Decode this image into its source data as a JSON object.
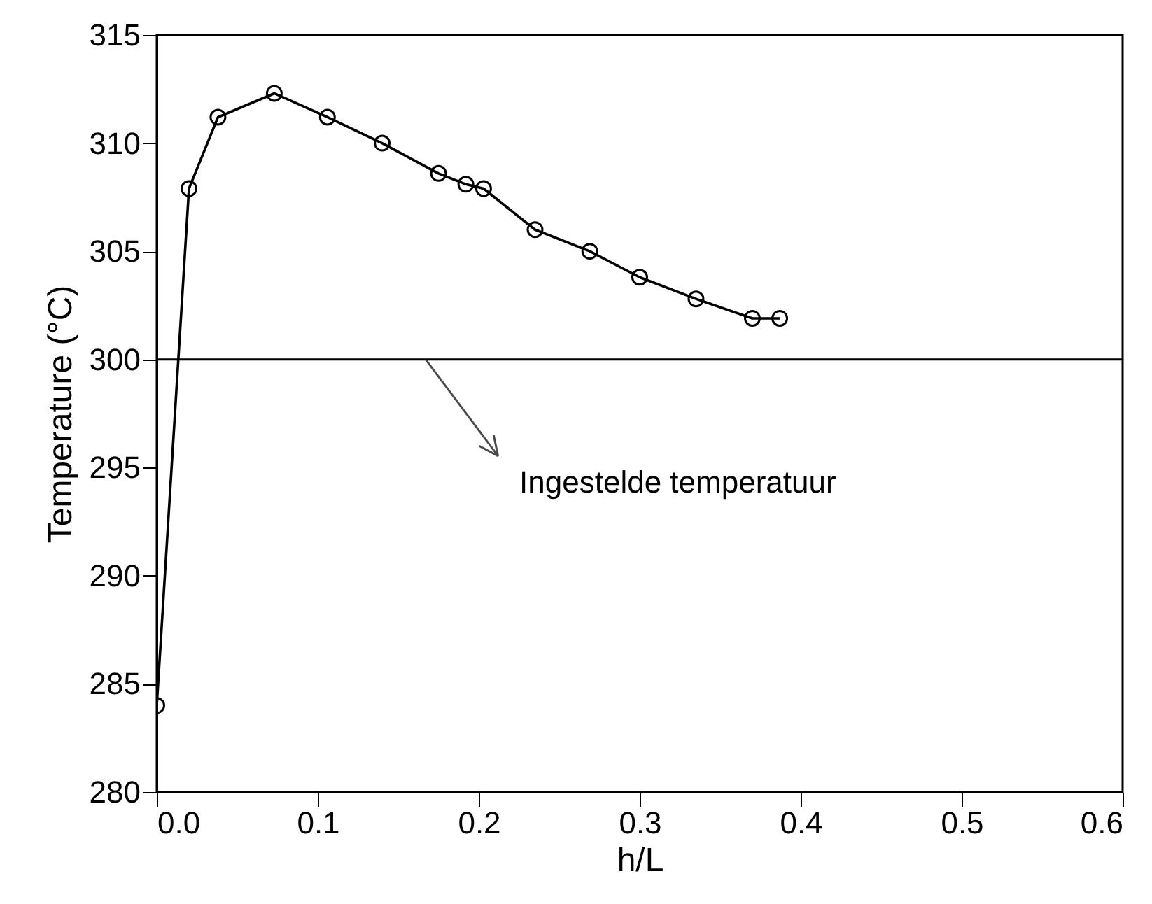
{
  "chart_data": {
    "type": "line",
    "xlabel": "h/L",
    "ylabel": "Temperature (°C)",
    "x": [
      0,
      0.02,
      0.038,
      0.073,
      0.106,
      0.14,
      0.175,
      0.192,
      0.203,
      0.235,
      0.269,
      0.3,
      0.335,
      0.37,
      0.387
    ],
    "series": [
      {
        "color": "#000000",
        "values": [
          284,
          307.9,
          311.2,
          312.3,
          311.2,
          310,
          308.6,
          308.1,
          307.9,
          306,
          305,
          303.8,
          302.8,
          301.9,
          301.9
        ]
      }
    ],
    "xlim": [
      0,
      0.6
    ],
    "xticks": [
      {
        "value": 0,
        "label": "0.0"
      },
      0.1,
      0.2,
      0.3,
      0.4,
      0.5,
      0.6
    ],
    "ylim": [
      280,
      315
    ],
    "yticks": [
      280,
      285,
      290,
      295,
      300,
      305,
      310,
      315
    ],
    "ref_lines": [
      {
        "axis": "y",
        "value": 300,
        "color": "#000000"
      }
    ],
    "annotations": [
      {
        "text": "Ingestelde temperatuur",
        "x": 0.167,
        "y": 300
      }
    ],
    "marker": "circle",
    "grid": false,
    "legend": false
  }
}
